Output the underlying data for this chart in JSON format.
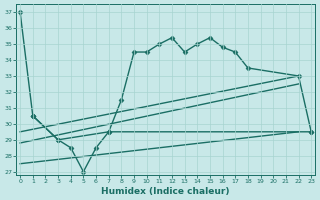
{
  "xlabel": "Humidex (Indice chaleur)",
  "bg_color": "#c8e8e8",
  "line_color": "#1a6e64",
  "grid_color": "#a8d4d0",
  "xlim": [
    -0.3,
    23.3
  ],
  "ylim": [
    26.8,
    37.5
  ],
  "yticks": [
    27,
    28,
    29,
    30,
    31,
    32,
    33,
    34,
    35,
    36,
    37
  ],
  "xticks": [
    0,
    1,
    2,
    3,
    4,
    5,
    6,
    7,
    8,
    9,
    10,
    11,
    12,
    13,
    14,
    15,
    16,
    17,
    18,
    19,
    20,
    21,
    22,
    23
  ],
  "series": [
    {
      "x": [
        1,
        3,
        7,
        8,
        9,
        10,
        11,
        12,
        13,
        14,
        15,
        16,
        17,
        18,
        22,
        23
      ],
      "y": [
        30.5,
        29,
        29.5,
        31.5,
        34.5,
        34.5,
        35,
        35.4,
        34.5,
        35,
        35.4,
        34.8,
        34.5,
        33.5,
        33,
        29.5
      ],
      "marker": "D",
      "markersize": 2.5,
      "lw": 1.0
    },
    {
      "x": [
        1,
        3,
        4,
        5,
        6,
        7,
        23
      ],
      "y": [
        30.5,
        29,
        28.5,
        27,
        28.5,
        29.5,
        29.5
      ],
      "marker": "D",
      "markersize": 2.5,
      "lw": 1.0
    },
    {
      "x": [
        0,
        22
      ],
      "y": [
        29.5,
        33.0
      ],
      "marker": null,
      "markersize": 0,
      "lw": 1.0
    },
    {
      "x": [
        0,
        22
      ],
      "y": [
        28.8,
        32.5
      ],
      "marker": null,
      "markersize": 0,
      "lw": 1.0
    },
    {
      "x": [
        0,
        22
      ],
      "y": [
        27.5,
        29.5
      ],
      "marker": null,
      "markersize": 0,
      "lw": 1.0
    },
    {
      "x": [
        0,
        1
      ],
      "y": [
        37,
        30.5
      ],
      "marker": "D",
      "markersize": 2.5,
      "lw": 1.0
    }
  ]
}
